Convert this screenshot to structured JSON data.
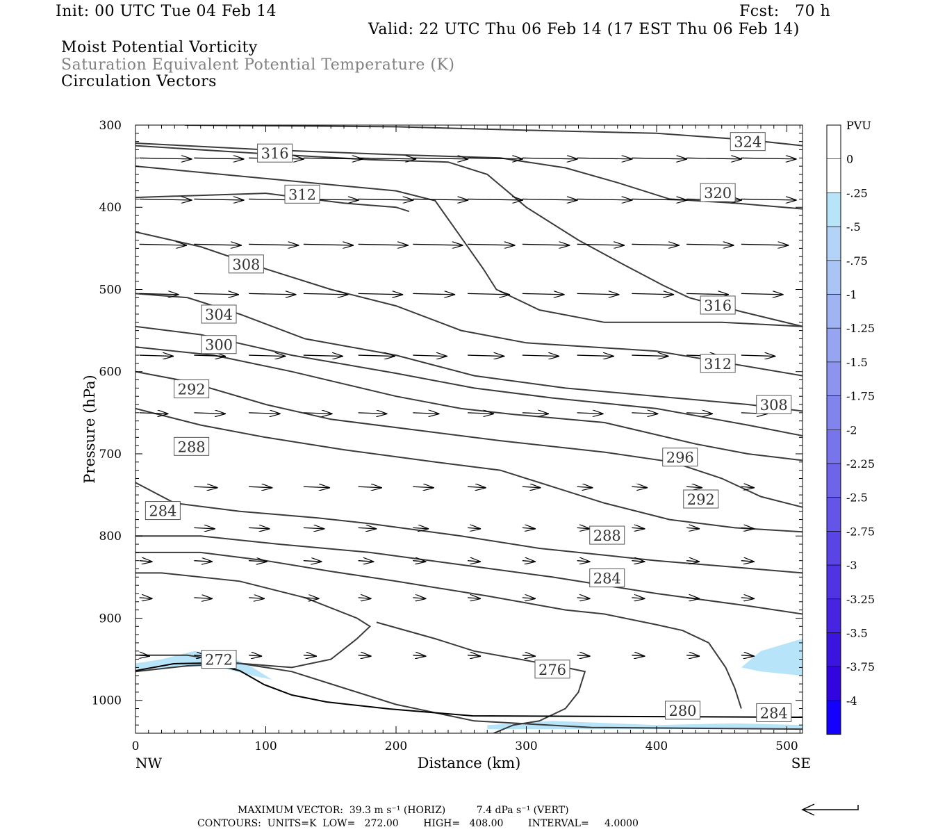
{
  "header": {
    "init": "Init: 00 UTC Tue 04 Feb 14",
    "fcst": "Fcst:   70 h",
    "valid": "Valid: 22 UTC Thu 06 Feb 14 (17 EST Thu 06 Feb 14)",
    "line1": "Moist Potential Vorticity",
    "line2": "Saturation Equivalent Potential Temperature (K)",
    "line3": "Circulation Vectors"
  },
  "footer": {
    "max_vector": "MAXIMUM VECTOR:  39.3 m s⁻¹ (HORIZ)          7.4 dPa s⁻¹ (VERT)",
    "contours": "CONTOURS:  UNITS=K  LOW=   272.00        HIGH=   408.00        INTERVAL=     4.0000"
  },
  "chart_data": {
    "type": "contour",
    "xlabel": "Distance (km)",
    "ylabel": "Pressure (hPa)",
    "xlim": [
      0,
      512
    ],
    "ylim": [
      300,
      1040
    ],
    "x_ticks": [
      0,
      100,
      200,
      300,
      400,
      500
    ],
    "y_ticks": [
      300,
      400,
      500,
      600,
      700,
      800,
      900,
      1000
    ],
    "x_left_label": "NW",
    "x_right_label": "SE",
    "colorbar": {
      "title": "PVU",
      "labels": [
        "0",
        "-.25",
        "-.5",
        "-.75",
        "-1",
        "-1.25",
        "-1.5",
        "-1.75",
        "-2",
        "-2.25",
        "-2.5",
        "-2.75",
        "-3",
        "-3.25",
        "-3.5",
        "-3.75",
        "-4"
      ],
      "colors": [
        "#ffffff",
        "#ffffff",
        "#b8e4fa",
        "#b3d3f8",
        "#aac4f6",
        "#a0b4f4",
        "#96a4f2",
        "#8c94f0",
        "#8284ee",
        "#7874ec",
        "#6e64ea",
        "#6454e8",
        "#5a44e6",
        "#5034e4",
        "#4624e2",
        "#3c14e0",
        "#3204df",
        "#1400ff"
      ]
    },
    "contours": [
      {
        "label": "324",
        "lx": 470,
        "ly": 320,
        "points": [
          [
            38,
            300
          ],
          [
            200,
            302
          ],
          [
            320,
            307
          ],
          [
            400,
            310
          ],
          [
            470,
            318
          ],
          [
            512,
            325
          ]
        ]
      },
      {
        "label": "320",
        "lx": 447,
        "ly": 382,
        "points": [
          [
            0,
            322
          ],
          [
            100,
            330
          ],
          [
            200,
            336
          ],
          [
            280,
            340
          ],
          [
            330,
            352
          ],
          [
            370,
            370
          ],
          [
            410,
            390
          ],
          [
            460,
            395
          ],
          [
            512,
            402
          ]
        ]
      },
      {
        "label": "316",
        "lx": 107,
        "ly": 334,
        "points": [
          [
            0,
            325
          ],
          [
            100,
            335
          ],
          [
            180,
            342
          ],
          [
            240,
            345
          ],
          [
            270,
            360
          ],
          [
            300,
            400
          ],
          [
            340,
            440
          ],
          [
            375,
            470
          ],
          [
            405,
            495
          ],
          [
            425,
            510
          ],
          [
            465,
            527
          ],
          [
            512,
            545
          ]
        ]
      },
      {
        "label": "316",
        "lx": 447,
        "ly": 519,
        "points": [
          [
            0,
            350
          ],
          [
            100,
            365
          ],
          [
            200,
            380
          ],
          [
            230,
            392
          ],
          [
            247,
            430
          ],
          [
            267,
            475
          ],
          [
            277,
            500
          ],
          [
            310,
            525
          ],
          [
            360,
            540
          ],
          [
            450,
            540
          ],
          [
            512,
            545
          ]
        ]
      },
      {
        "label": "312",
        "lx": 128,
        "ly": 384,
        "points": [
          [
            0,
            388
          ],
          [
            100,
            383
          ],
          [
            160,
            395
          ],
          [
            200,
            400
          ],
          [
            210,
            405
          ]
        ]
      },
      {
        "label": "312",
        "lx": 447,
        "ly": 590,
        "points": [
          [
            0,
            430
          ],
          [
            50,
            448
          ],
          [
            100,
            475
          ],
          [
            150,
            500
          ],
          [
            200,
            520
          ],
          [
            250,
            550
          ],
          [
            300,
            565
          ],
          [
            400,
            575
          ],
          [
            512,
            605
          ]
        ]
      },
      {
        "label": "308",
        "lx": 85,
        "ly": 469,
        "points": [
          [
            0,
            505
          ],
          [
            40,
            510
          ],
          [
            80,
            530
          ],
          [
            130,
            560
          ],
          [
            200,
            580
          ],
          [
            260,
            605
          ],
          [
            330,
            620
          ],
          [
            400,
            630
          ],
          [
            470,
            640
          ],
          [
            512,
            648
          ]
        ]
      },
      {
        "label": "308",
        "lx": 490,
        "ly": 640,
        "points": [
          [
            0,
            545
          ],
          [
            50,
            555
          ],
          [
            120,
            580
          ],
          [
            200,
            602
          ],
          [
            260,
            620
          ],
          [
            320,
            632
          ],
          [
            400,
            645
          ],
          [
            470,
            665
          ],
          [
            512,
            678
          ]
        ]
      },
      {
        "label": "304",
        "lx": 64,
        "ly": 530,
        "points": [
          [
            0,
            570
          ],
          [
            60,
            580
          ],
          [
            120,
            600
          ],
          [
            200,
            630
          ],
          [
            250,
            645
          ],
          [
            290,
            652
          ],
          [
            360,
            662
          ],
          [
            430,
            688
          ],
          [
            470,
            700
          ],
          [
            512,
            708
          ]
        ]
      },
      {
        "label": "300",
        "lx": 64,
        "ly": 567,
        "points": [
          [
            0,
            600
          ],
          [
            40,
            612
          ],
          [
            100,
            640
          ],
          [
            150,
            658
          ],
          [
            220,
            672
          ],
          [
            280,
            684
          ],
          [
            360,
            698
          ],
          [
            412,
            710
          ],
          [
            450,
            730
          ],
          [
            480,
            752
          ],
          [
            512,
            765
          ]
        ]
      },
      {
        "label": "296",
        "lx": 418,
        "ly": 704,
        "points": [
          [
            0,
            645
          ],
          [
            50,
            665
          ],
          [
            100,
            680
          ],
          [
            160,
            695
          ],
          [
            230,
            710
          ],
          [
            280,
            720
          ],
          [
            330,
            745
          ],
          [
            360,
            760
          ],
          [
            410,
            780
          ],
          [
            460,
            790
          ],
          [
            512,
            795
          ]
        ]
      },
      {
        "label": "292",
        "lx": 43,
        "ly": 621,
        "points": [
          [
            0,
            735
          ],
          [
            30,
            760
          ],
          [
            80,
            770
          ],
          [
            140,
            778
          ],
          [
            180,
            785
          ],
          [
            250,
            800
          ],
          [
            310,
            815
          ],
          [
            400,
            830
          ],
          [
            460,
            838
          ],
          [
            512,
            845
          ]
        ]
      },
      {
        "label": "292",
        "lx": 434,
        "ly": 755,
        "points": [
          [
            0,
            800
          ],
          [
            50,
            800
          ],
          [
            110,
            810
          ],
          [
            180,
            820
          ],
          [
            250,
            835
          ],
          [
            320,
            850
          ],
          [
            400,
            870
          ],
          [
            470,
            885
          ],
          [
            512,
            895
          ]
        ]
      },
      {
        "label": "288",
        "lx": 43,
        "ly": 691,
        "points": [
          [
            0,
            820
          ],
          [
            50,
            820
          ],
          [
            100,
            830
          ],
          [
            150,
            843
          ],
          [
            200,
            855
          ],
          [
            270,
            873
          ],
          [
            330,
            890
          ],
          [
            360,
            895
          ],
          [
            400,
            908
          ],
          [
            420,
            915
          ],
          [
            440,
            930
          ],
          [
            453,
            960
          ],
          [
            460,
            985
          ],
          [
            465,
            1010
          ]
        ]
      },
      {
        "label": "288",
        "lx": 362,
        "ly": 799,
        "points": [
          [
            0,
            845
          ],
          [
            20,
            845
          ],
          [
            80,
            855
          ],
          [
            130,
            875
          ],
          [
            170,
            900
          ],
          [
            180,
            910
          ],
          [
            170,
            925
          ],
          [
            150,
            950
          ],
          [
            120,
            960
          ],
          [
            80,
            955
          ],
          [
            40,
            945
          ],
          [
            0,
            945
          ]
        ]
      },
      {
        "label": "284",
        "lx": 21,
        "ly": 769,
        "points": [
          [
            185,
            905
          ],
          [
            230,
            925
          ],
          [
            260,
            940
          ],
          [
            330,
            960
          ],
          [
            345,
            965
          ],
          [
            340,
            990
          ],
          [
            330,
            1010
          ],
          [
            310,
            1025
          ],
          [
            290,
            1030
          ],
          [
            275,
            1040
          ]
        ]
      },
      {
        "label": "284",
        "lx": 362,
        "ly": 851,
        "points": [
          [
            0,
            965
          ],
          [
            40,
            958
          ],
          [
            80,
            955
          ],
          [
            120,
            965
          ],
          [
            160,
            985
          ],
          [
            200,
            1005
          ],
          [
            260,
            1025
          ],
          [
            350,
            1033
          ],
          [
            512,
            1035
          ]
        ]
      },
      {
        "label": "280",
        "lx": 420,
        "ly": 1012,
        "points": [
          [
            0,
            1040
          ],
          [
            512,
            1040
          ]
        ]
      },
      {
        "label": "276",
        "lx": 320,
        "ly": 962,
        "points": [
          [
            0,
            1040
          ],
          [
            512,
            1040
          ]
        ]
      },
      {
        "label": "272",
        "lx": 64,
        "ly": 950,
        "points": [
          [
            0,
            1040
          ],
          [
            512,
            1040
          ]
        ]
      },
      {
        "label": "284",
        "lx": 490,
        "ly": 1015,
        "points": [
          [
            0,
            1040
          ],
          [
            512,
            1040
          ]
        ]
      }
    ],
    "pv_shading": [
      {
        "value": -0.25,
        "points": [
          [
            0,
            955
          ],
          [
            20,
            950
          ],
          [
            45,
            940
          ],
          [
            70,
            945
          ],
          [
            90,
            960
          ],
          [
            105,
            975
          ],
          [
            90,
            970
          ],
          [
            60,
            958
          ],
          [
            30,
            960
          ],
          [
            0,
            962
          ]
        ]
      },
      {
        "value": -0.25,
        "points": [
          [
            465,
            960
          ],
          [
            480,
            940
          ],
          [
            512,
            925
          ],
          [
            512,
            970
          ],
          [
            480,
            965
          ]
        ]
      },
      {
        "value": -0.25,
        "points": [
          [
            270,
            1030
          ],
          [
            320,
            1025
          ],
          [
            400,
            1030
          ],
          [
            460,
            1028
          ],
          [
            512,
            1030
          ],
          [
            512,
            1035
          ],
          [
            270,
            1035
          ]
        ]
      }
    ],
    "vectors": {
      "levels": [
        340,
        390,
        445,
        505,
        580,
        650,
        740,
        790,
        830,
        875,
        945
      ],
      "x_positions": [
        0,
        42,
        84,
        126,
        168,
        210,
        252,
        294,
        336,
        378,
        420,
        462
      ],
      "u": [
        [
          40,
          38,
          42,
          45,
          44,
          42,
          42,
          42,
          42,
          42,
          42,
          42
        ],
        [
          40,
          38,
          40,
          42,
          42,
          42,
          42,
          42,
          42,
          42,
          42,
          42
        ],
        [
          36,
          36,
          38,
          38,
          38,
          38,
          36,
          36,
          36,
          36,
          36,
          36
        ],
        [
          30,
          34,
          36,
          34,
          34,
          32,
          32,
          32,
          32,
          32,
          32,
          32
        ],
        [
          26,
          24,
          28,
          30,
          28,
          26,
          28,
          28,
          28,
          28,
          26,
          26
        ],
        [
          22,
          24,
          24,
          22,
          22,
          20,
          20,
          20,
          20,
          20,
          20,
          20
        ],
        [
          0,
          18,
          18,
          20,
          18,
          16,
          14,
          14,
          12,
          12,
          12,
          10
        ],
        [
          0,
          16,
          16,
          16,
          14,
          12,
          10,
          10,
          10,
          10,
          10,
          10
        ],
        [
          10,
          14,
          14,
          14,
          12,
          10,
          10,
          10,
          10,
          10,
          10,
          10
        ],
        [
          10,
          14,
          12,
          12,
          10,
          10,
          10,
          10,
          10,
          10,
          10,
          10
        ],
        [
          8,
          10,
          10,
          10,
          10,
          10,
          10,
          10,
          10,
          10,
          10,
          10
        ]
      ]
    }
  }
}
